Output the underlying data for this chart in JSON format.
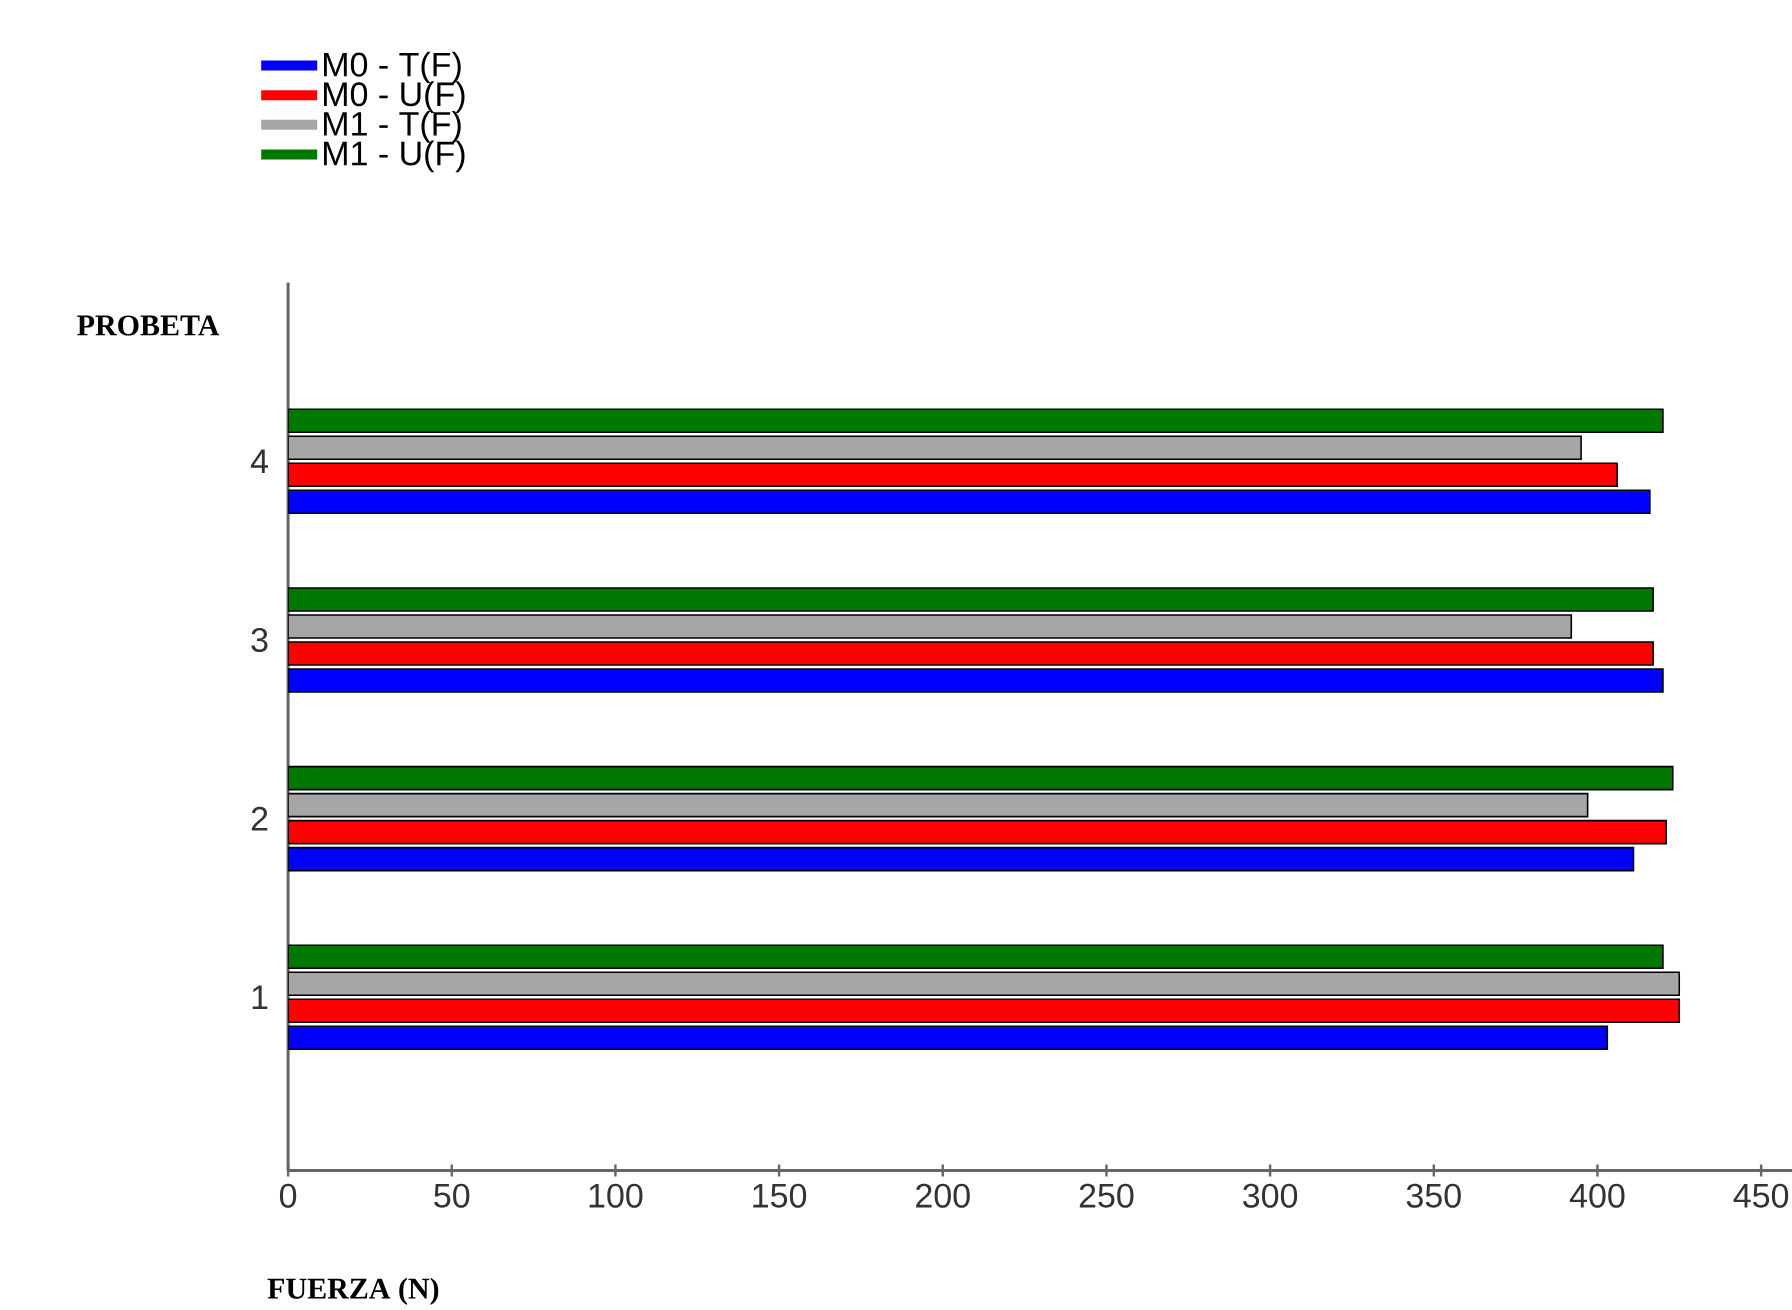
{
  "chart_data": {
    "type": "bar",
    "orientation": "horizontal",
    "xlabel": "FUERZA (N)",
    "ylabel": "PROBETA",
    "categories": [
      "4",
      "3",
      "2",
      "1"
    ],
    "series": [
      {
        "name": "M0 - T(F)",
        "color": "#0000ff",
        "values": [
          416,
          420,
          411,
          403
        ]
      },
      {
        "name": "M0 - U(F)",
        "color": "#ff0000",
        "values": [
          406,
          417,
          421,
          425
        ]
      },
      {
        "name": "M1 - T(F)",
        "color": "#a6a6a6",
        "values": [
          395,
          392,
          397,
          425
        ]
      },
      {
        "name": "M1 - U(F)",
        "color": "#007800",
        "values": [
          420,
          417,
          423,
          420
        ]
      }
    ],
    "xlim": [
      0,
      490
    ],
    "xticks": [
      0,
      50,
      100,
      150,
      200,
      250,
      300,
      350,
      400,
      450
    ],
    "legend": "top left"
  }
}
